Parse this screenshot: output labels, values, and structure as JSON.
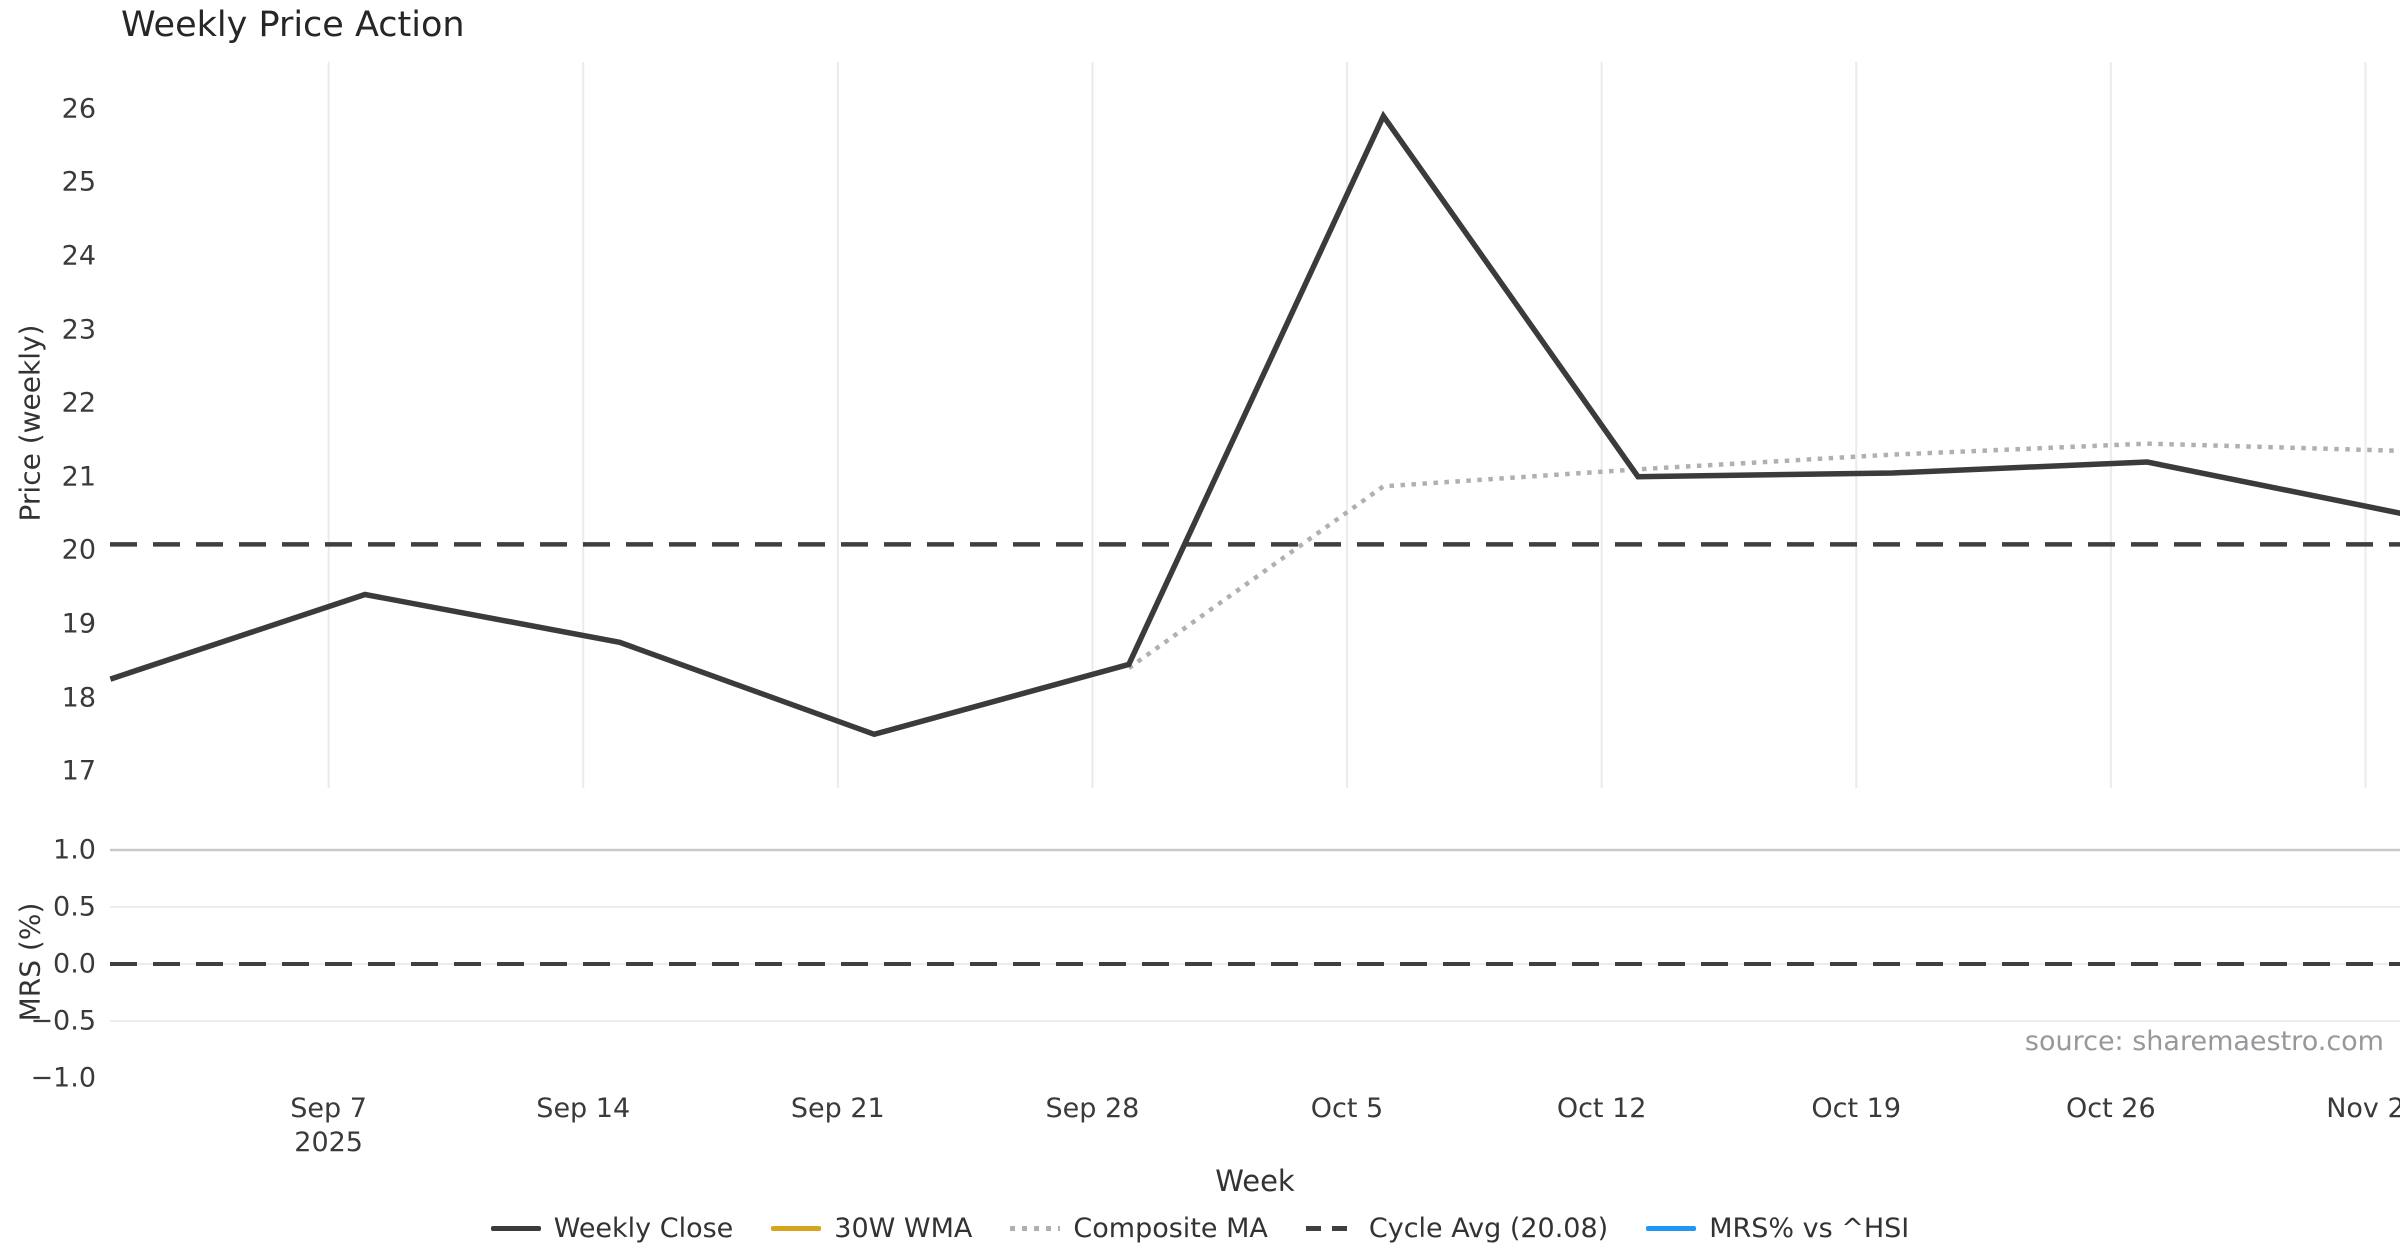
{
  "title": "Weekly Price Action",
  "source": "source: sharemaestro.com",
  "colors": {
    "weekly_close": "#3b3b3b",
    "wma_30w": "#d6a51c",
    "composite_ma": "#b0b0b0",
    "cycle_avg": "#3f3f3f",
    "mrs": "#2196f3",
    "grid_vertical": "#ebebef",
    "grid_horizontal": "#ececec",
    "grid_horizontal_top": "#c9c9c9",
    "tick_text": "#3a3a3a",
    "source_text": "#97979c"
  },
  "x_axis": {
    "label": "Week",
    "ticks": [
      {
        "label": "Sep 7",
        "sub": "2025",
        "day": 6
      },
      {
        "label": "Sep 14",
        "day": 13
      },
      {
        "label": "Sep 21",
        "day": 20
      },
      {
        "label": "Sep 28",
        "day": 27
      },
      {
        "label": "Oct 5",
        "day": 34
      },
      {
        "label": "Oct 12",
        "day": 41
      },
      {
        "label": "Oct 19",
        "day": 48
      },
      {
        "label": "Oct 26",
        "day": 55
      },
      {
        "label": "Nov 2",
        "day": 62
      }
    ]
  },
  "price_panel": {
    "ylabel": "Price (weekly)",
    "yticks": [
      {
        "label": "26",
        "value": 26
      },
      {
        "label": "25",
        "value": 25
      },
      {
        "label": "24",
        "value": 24
      },
      {
        "label": "23",
        "value": 23
      },
      {
        "label": "22",
        "value": 22
      },
      {
        "label": "21",
        "value": 21
      },
      {
        "label": "20",
        "value": 20
      },
      {
        "label": "19",
        "value": 19
      },
      {
        "label": "18",
        "value": 18
      },
      {
        "label": "17",
        "value": 17
      }
    ]
  },
  "mrs_panel": {
    "ylabel": "MRS (%)",
    "yticks": [
      {
        "label": "1.0",
        "value": 1.0
      },
      {
        "label": "0.5",
        "value": 0.5
      },
      {
        "label": "0.0",
        "value": 0.0
      },
      {
        "label": "−0.5",
        "value": -0.5
      },
      {
        "label": "−1.0",
        "value": -1.0
      }
    ]
  },
  "legend": [
    {
      "label": "Weekly Close",
      "style": "solid",
      "color": "#3b3b3b"
    },
    {
      "label": "30W WMA",
      "style": "solid",
      "color": "#d6a51c"
    },
    {
      "label": "Composite MA",
      "style": "dotted",
      "color": "#b0b0b0"
    },
    {
      "label": "Cycle Avg (20.08)",
      "style": "dashed",
      "color": "#3f3f3f"
    },
    {
      "label": "MRS% vs ^HSI",
      "style": "solid",
      "color": "#2196f3"
    }
  ],
  "chart_data": [
    {
      "type": "line",
      "panel": "price",
      "title": "Weekly Price Action",
      "xlabel": "Week",
      "ylabel": "Price (weekly)",
      "ylim": [
        16.8,
        26.6
      ],
      "grid": "vertical",
      "legend_position": "bottom",
      "x_unit": "days since Sep 1 2025",
      "x_tick_days": [
        6,
        13,
        20,
        27,
        34,
        41,
        48,
        55,
        62
      ],
      "x_tick_labels": [
        "Sep 7 2025",
        "Sep 14",
        "Sep 21",
        "Sep 28",
        "Oct 5",
        "Oct 12",
        "Oct 19",
        "Oct 26",
        "Nov 2"
      ],
      "series": [
        {
          "name": "Weekly Close",
          "style": "solid",
          "color": "#3b3b3b",
          "width": 5.5,
          "dates": [
            "Sep 1",
            "Sep 8",
            "Sep 15",
            "Sep 22",
            "Sep 29",
            "Oct 6",
            "Oct 13",
            "Oct 20",
            "Oct 27",
            "Nov 3"
          ],
          "x_days": [
            0,
            7,
            14,
            21,
            28,
            35,
            42,
            49,
            56,
            63
          ],
          "values": [
            18.25,
            19.4,
            18.75,
            17.5,
            18.45,
            25.9,
            21.0,
            21.05,
            21.2,
            20.5
          ]
        },
        {
          "name": "30W WMA",
          "style": "solid",
          "color": "#d6a51c",
          "width": 5,
          "x_days": [],
          "values": []
        },
        {
          "name": "Composite MA",
          "style": "dotted",
          "color": "#b0b0b0",
          "width": 4.5,
          "dates": [
            "Sep 29",
            "Oct 6",
            "Oct 13",
            "Oct 20",
            "Oct 27",
            "Nov 3"
          ],
          "x_days": [
            28,
            35,
            42,
            49,
            56,
            63
          ],
          "values": [
            18.4,
            20.87,
            21.1,
            21.3,
            21.45,
            21.35
          ]
        },
        {
          "name": "Cycle Avg (20.08)",
          "style": "dashed",
          "color": "#3f3f3f",
          "width": 4.5,
          "hline": 20.08
        }
      ]
    },
    {
      "type": "line",
      "panel": "mrs",
      "ylabel": "MRS (%)",
      "ylim": [
        -1.05,
        1.0
      ],
      "grid": "horizontal",
      "yticks": [
        1.0,
        0.5,
        0.0,
        -0.5,
        -1.0
      ],
      "series": [
        {
          "name": "MRS% vs ^HSI",
          "style": "solid",
          "color": "#2196f3",
          "width": 4,
          "x_days": [],
          "values": []
        },
        {
          "name": "Zero line",
          "style": "dashed",
          "color": "#3f3f3f",
          "width": 4,
          "hline": 0.0
        }
      ]
    }
  ]
}
